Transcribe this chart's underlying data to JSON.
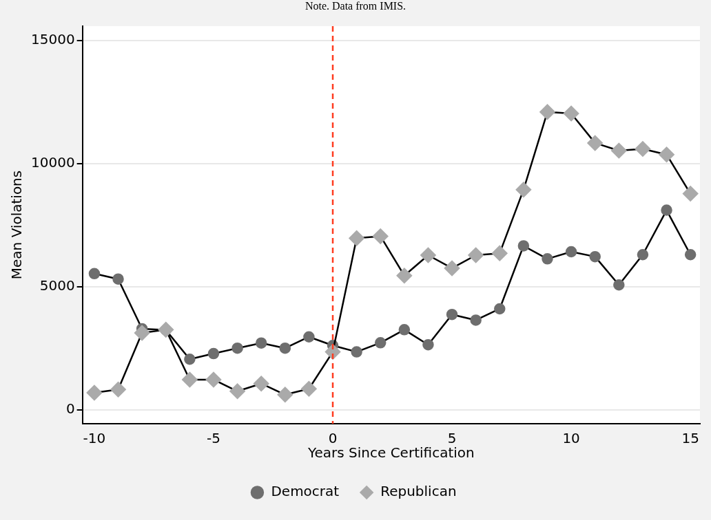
{
  "chart_data": {
    "type": "line",
    "annotations": [
      "Note. Data from IMIS."
    ],
    "xlabel": "Years Since Certification",
    "ylabel": "Mean Violations",
    "x": [
      -10,
      -9,
      -8,
      -7,
      -6,
      -5,
      -4,
      -3,
      -2,
      -1,
      0,
      1,
      2,
      3,
      4,
      5,
      6,
      7,
      8,
      9,
      10,
      11,
      12,
      13,
      14,
      15
    ],
    "series": [
      {
        "name": "Democrat",
        "color": "#6e6e6e",
        "marker": "circle",
        "values": [
          5530,
          5310,
          3290,
          3240,
          2050,
          2280,
          2500,
          2710,
          2500,
          2960,
          2610,
          2350,
          2720,
          3250,
          2640,
          3870,
          3640,
          4100,
          6660,
          6130,
          6420,
          6220,
          5070,
          6300,
          8110,
          6300
        ]
      },
      {
        "name": "Republican",
        "color": "#aaaaaa",
        "marker": "diamond",
        "values": [
          690,
          820,
          3120,
          3250,
          1220,
          1220,
          750,
          1060,
          610,
          850,
          2350,
          6970,
          7050,
          5450,
          6280,
          5750,
          6280,
          6360,
          8940,
          12100,
          12040,
          10840,
          10530,
          10600,
          10370,
          8780
        ]
      }
    ],
    "xlim": [
      -10.5,
      15.4
    ],
    "xticks": [
      -10,
      -5,
      0,
      5,
      10,
      15
    ],
    "ylim": [
      -570,
      15590
    ],
    "yticks": [
      0,
      5000,
      10000,
      15000
    ],
    "grid": "y",
    "legend": "bottom",
    "ref_lines": [
      {
        "axis": "x",
        "value": 0,
        "color": "#ff3b1f",
        "line_style": "dashed"
      }
    ]
  }
}
